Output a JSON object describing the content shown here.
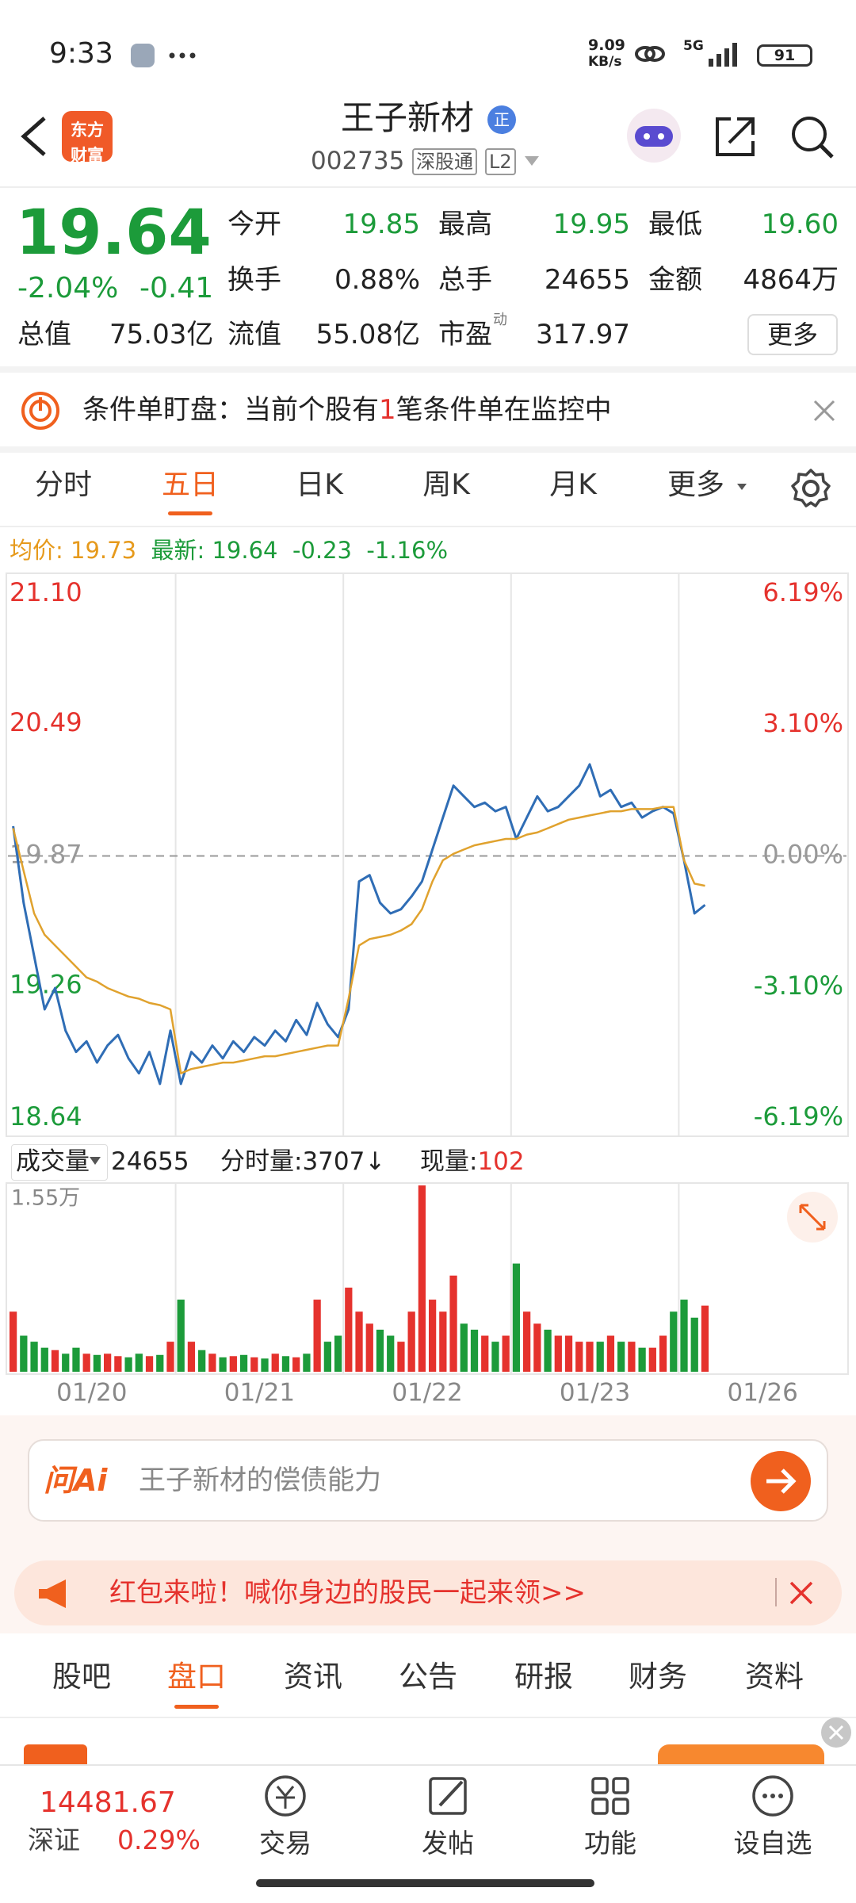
{
  "status_bar": {
    "time": "9:33",
    "net_speed": "9.09",
    "net_unit": "KB/s",
    "network": "5G",
    "battery": "91"
  },
  "header": {
    "logo": [
      "东方",
      "财富"
    ],
    "title": "王子新材",
    "badge": "正",
    "code": "002735",
    "tags": [
      "深股通",
      "L2"
    ]
  },
  "quote": {
    "price": "19.64",
    "change_pct": "-2.04%",
    "change": "-0.41",
    "open_label": "今开",
    "open": "19.85",
    "high_label": "最高",
    "high": "19.95",
    "low_label": "最低",
    "low": "19.60",
    "turnover_label": "换手",
    "turnover": "0.88%",
    "volume_label": "总手",
    "volume": "24655",
    "amount_label": "金额",
    "amount": "4864万",
    "mcap_label": "总值",
    "mcap": "75.03亿",
    "float_label": "流值",
    "float": "55.08亿",
    "pe_label": "市盈",
    "pe_tag": "动",
    "pe": "317.97",
    "more": "更多"
  },
  "alert": {
    "title": "条件单盯盘：",
    "text_before": "当前个股有",
    "count": "1",
    "text_after": "笔条件单在监控中"
  },
  "tabs": {
    "items": [
      "分时",
      "五日",
      "日K",
      "周K",
      "月K",
      "更多"
    ],
    "active": 1
  },
  "chart_data": [
    {
      "type": "line",
      "avg_label": "均价:",
      "avg": "19.73",
      "last_label": "最新:",
      "last": "19.64",
      "change": "-0.23",
      "change_pct": "-1.16%",
      "ylim": [
        18.64,
        21.1
      ],
      "yticks": [
        {
          "value": 21.1,
          "label": "21.10"
        },
        20.49,
        19.87,
        19.26,
        18.64
      ],
      "y2lim": [
        -6.19,
        6.19
      ],
      "y2ticks": [
        {
          "value": 6.19,
          "label": "6.19%"
        },
        {
          "value": 3.1,
          "label": "3.10%"
        },
        {
          "value": 0,
          "label": "0.00%"
        },
        {
          "value": -3.1,
          "label": "-3.10%"
        },
        {
          "value": -6.19,
          "label": "-6.19%"
        }
      ],
      "series": [
        {
          "color": "#2f6db5",
          "values": [
            20.01,
            19.65,
            19.4,
            19.15,
            19.25,
            19.05,
            18.95,
            19.0,
            18.9,
            18.98,
            19.03,
            18.92,
            18.85,
            18.95,
            18.8,
            19.05,
            18.8,
            18.95,
            18.9,
            18.98,
            18.92,
            19.0,
            18.95,
            19.02,
            18.98,
            19.05,
            19.0,
            19.1,
            19.03,
            19.18,
            19.08,
            19.02,
            19.15,
            19.75,
            19.78,
            19.65,
            19.6,
            19.62,
            19.68,
            19.75,
            19.9,
            20.05,
            20.2,
            20.15,
            20.1,
            20.12,
            20.08,
            20.1,
            19.95,
            20.05,
            20.15,
            20.08,
            20.1,
            20.15,
            20.2,
            20.3,
            20.15,
            20.18,
            20.1,
            20.12,
            20.05,
            20.08,
            20.1,
            20.07,
            19.85,
            19.6,
            19.64,
            null,
            null,
            null,
            null,
            null,
            null,
            null,
            null,
            null,
            null,
            null,
            null,
            null
          ]
        },
        {
          "color": "#e0a22e",
          "values": [
            20.0,
            19.8,
            19.6,
            19.5,
            19.45,
            19.4,
            19.35,
            19.3,
            19.28,
            19.25,
            19.23,
            19.21,
            19.2,
            19.18,
            19.17,
            19.15,
            18.85,
            18.87,
            18.88,
            18.89,
            18.9,
            18.9,
            18.91,
            18.92,
            18.93,
            18.93,
            18.94,
            18.95,
            18.96,
            18.97,
            18.98,
            18.98,
            19.2,
            19.45,
            19.48,
            19.49,
            19.5,
            19.52,
            19.55,
            19.62,
            19.75,
            19.85,
            19.88,
            19.9,
            19.92,
            19.93,
            19.94,
            19.95,
            19.95,
            19.97,
            19.98,
            20.0,
            20.02,
            20.04,
            20.05,
            20.06,
            20.07,
            20.08,
            20.08,
            20.09,
            20.09,
            20.09,
            20.1,
            20.1,
            19.85,
            19.74,
            19.73,
            null,
            null,
            null,
            null,
            null,
            null,
            null,
            null,
            null,
            null,
            null,
            null,
            null
          ]
        }
      ]
    },
    {
      "type": "bar",
      "title": "成交量",
      "total": "24655",
      "period_label": "分时量:",
      "period_value": "3707↓",
      "now_label": "现量:",
      "now_value": "102",
      "up_color": "#e5322d",
      "down_color": "#1c9b3a",
      "ylim": [
        0,
        15500
      ],
      "yticks": [
        {
          "value": 15500,
          "label": "1.55万"
        }
      ],
      "values": [
        5000,
        3000,
        2500,
        2000,
        1800,
        1500,
        2000,
        1500,
        1400,
        1500,
        1300,
        1200,
        1500,
        1300,
        1400,
        2500,
        6000,
        2500,
        1800,
        1500,
        1200,
        1300,
        1400,
        1200,
        1100,
        1500,
        1300,
        1200,
        1500,
        6000,
        2500,
        3000,
        7000,
        5000,
        4000,
        3500,
        3000,
        2500,
        5000,
        15500,
        6000,
        5000,
        8000,
        4000,
        3500,
        3000,
        2500,
        3000,
        9000,
        5000,
        4000,
        3500,
        3000,
        3000,
        2500,
        2500,
        2500,
        3000,
        2500,
        2500,
        2000,
        2000,
        3000,
        5000,
        6000,
        4500,
        5500,
        null,
        null,
        null,
        null,
        null,
        null,
        null,
        null,
        null,
        null,
        null,
        null,
        null
      ],
      "day_labels": [
        "01/20",
        "01/21",
        "01/22",
        "01/23",
        "01/26"
      ]
    }
  ],
  "ai": {
    "brand": "问Ai",
    "placeholder": "王子新材的偿债能力"
  },
  "promo": {
    "text": "红包来啦！喊你身边的股民一起来领>>"
  },
  "section_tabs": {
    "items": [
      "股吧",
      "盘口",
      "资讯",
      "公告",
      "研报",
      "财务",
      "资料"
    ],
    "active": 1
  },
  "bottom_nav": {
    "index_value": "14481.67",
    "index_name": "深证",
    "index_change": "0.29%",
    "items": [
      "交易",
      "发帖",
      "功能",
      "设自选"
    ]
  }
}
